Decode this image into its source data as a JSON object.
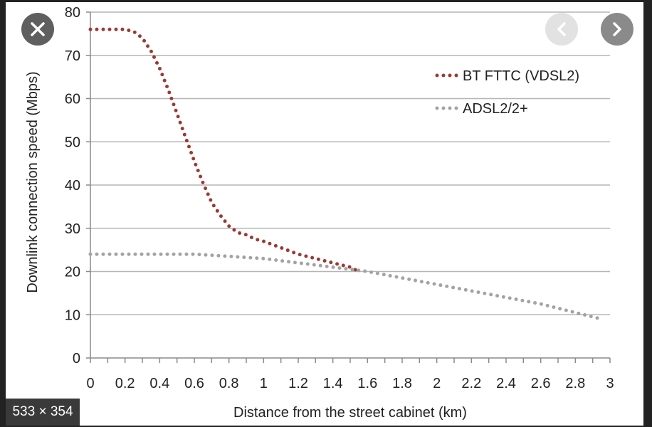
{
  "viewer": {
    "image_size_label": "533 × 354",
    "close_icon": "close-icon",
    "prev_icon": "chevron-left-icon",
    "next_icon": "chevron-right-icon"
  },
  "chart_data": {
    "type": "line",
    "title": "",
    "xlabel": "Distance from the street cabinet (km)",
    "ylabel": "Downlink connection speed (Mbps)",
    "xlim": [
      0,
      3
    ],
    "ylim": [
      0,
      80
    ],
    "x_ticks": [
      "0",
      "0.2",
      "0.4",
      "0.6",
      "0.8",
      "1",
      "1.2",
      "1.4",
      "1.6",
      "1.8",
      "2",
      "2.2",
      "2.4",
      "2.6",
      "2.8",
      "3"
    ],
    "y_ticks": [
      "0",
      "10",
      "20",
      "30",
      "40",
      "50",
      "60",
      "70",
      "80"
    ],
    "grid": true,
    "legend_position": "top-right",
    "line_style": "dotted",
    "series": [
      {
        "name": "BT FTTC (VDSL2)",
        "color": "#9b3a33",
        "x": [
          0,
          0.1,
          0.2,
          0.25,
          0.3,
          0.35,
          0.4,
          0.45,
          0.5,
          0.55,
          0.6,
          0.65,
          0.7,
          0.75,
          0.8,
          0.85,
          0.9,
          0.95,
          1.0,
          1.1,
          1.2,
          1.3,
          1.4,
          1.5,
          1.55
        ],
        "y": [
          76,
          76,
          76,
          75.5,
          74,
          71,
          67,
          62,
          56.5,
          51,
          45.5,
          40.5,
          36,
          33,
          30.5,
          29,
          28.5,
          27.5,
          27,
          25.5,
          24,
          23,
          22,
          21,
          20
        ]
      },
      {
        "name": "ADSL2/2+",
        "color": "#a3a3a3",
        "x": [
          0,
          0.2,
          0.4,
          0.6,
          0.8,
          1.0,
          1.2,
          1.4,
          1.6,
          1.8,
          2.0,
          2.2,
          2.4,
          2.6,
          2.8,
          2.95
        ],
        "y": [
          24,
          24,
          24,
          24,
          23.5,
          23,
          22,
          21,
          20,
          18.5,
          17,
          15.5,
          14,
          12.5,
          10.5,
          9
        ]
      }
    ]
  }
}
